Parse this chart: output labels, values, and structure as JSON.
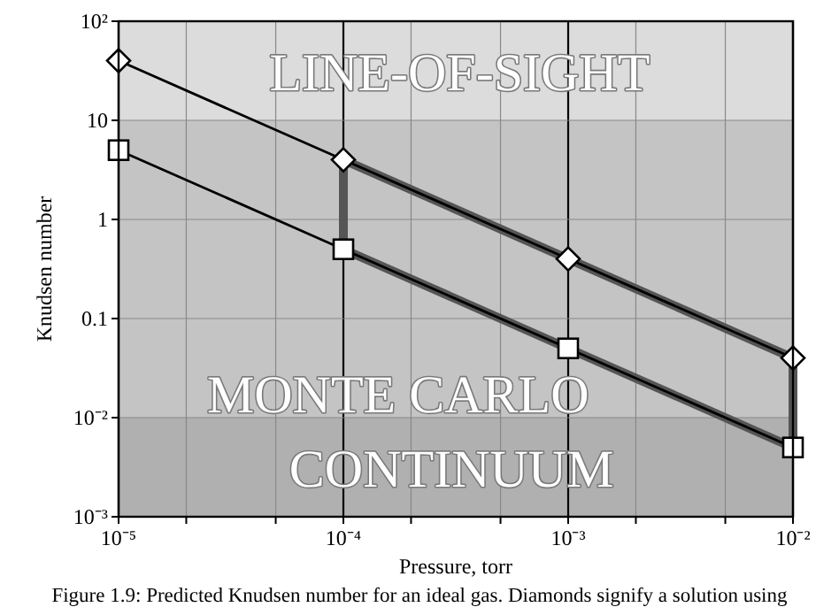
{
  "chart_data": {
    "type": "line",
    "xlabel": "Pressure, torr",
    "ylabel": "Knudsen number",
    "log": "xy",
    "grid": true,
    "marker": "none",
    "x": [
      1e-05,
      0.0001,
      0.001,
      0.01
    ],
    "xlim": [
      1e-05,
      0.01
    ],
    "ylim": [
      0.001,
      100
    ],
    "xticks": [
      {
        "value": 1e-05,
        "label": "10⁻⁵"
      },
      {
        "value": 2e-05,
        "label": null
      },
      {
        "value": 5e-05,
        "label": null
      },
      {
        "value": 0.0001,
        "label": "10⁻⁴"
      },
      {
        "value": 0.0002,
        "label": null
      },
      {
        "value": 0.0005,
        "label": null
      },
      {
        "value": 0.001,
        "label": "10⁻³"
      },
      {
        "value": 0.002,
        "label": null
      },
      {
        "value": 0.005,
        "label": null
      },
      {
        "value": 0.01,
        "label": "10⁻²"
      }
    ],
    "yticks": [
      {
        "value": 0.001,
        "label": "10⁻³"
      },
      {
        "value": 0.01,
        "label": "10⁻²"
      },
      {
        "value": 0.1,
        "label": "0.1"
      },
      {
        "value": 1,
        "label": "1"
      },
      {
        "value": 10,
        "label": "10"
      },
      {
        "value": 100,
        "label": "10²"
      }
    ],
    "bands": [
      {
        "axis": "y",
        "from": 10,
        "to": 100,
        "label": "LINE-OF-SIGHT",
        "color": "#dcdcdc"
      },
      {
        "axis": "y",
        "from": 0.01,
        "to": 10,
        "label": "MONTE CARLO",
        "color": "#c4c4c4"
      },
      {
        "axis": "y",
        "from": 0.001,
        "to": 0.01,
        "label": "CONTINUUM",
        "color": "#b0b0b0"
      }
    ],
    "series": [
      {
        "color": "#000000",
        "marker": "diamond",
        "values": [
          40,
          4,
          0.4,
          0.04
        ]
      },
      {
        "color": "#000000",
        "marker": "square",
        "values": [
          5,
          0.5,
          0.05,
          0.005
        ]
      },
      {
        "color": "#555555",
        "x": [
          0.0001,
          0.001,
          0.01
        ],
        "values": [
          4,
          0.4,
          0.04
        ]
      },
      {
        "color": "#555555",
        "x": [
          0.0001,
          0.001,
          0.01
        ],
        "values": [
          0.5,
          0.05,
          0.005
        ]
      },
      {
        "color": "#555555",
        "x": [
          0.0001,
          0.0001
        ],
        "values": [
          0.5,
          4
        ]
      },
      {
        "color": "#555555",
        "x": [
          0.01,
          0.01
        ],
        "values": [
          0.005,
          0.04
        ]
      }
    ],
    "annotations": [
      "Figure 1.9: Predicted Knudsen number for an ideal gas. Diamonds signify a solution using"
    ]
  }
}
